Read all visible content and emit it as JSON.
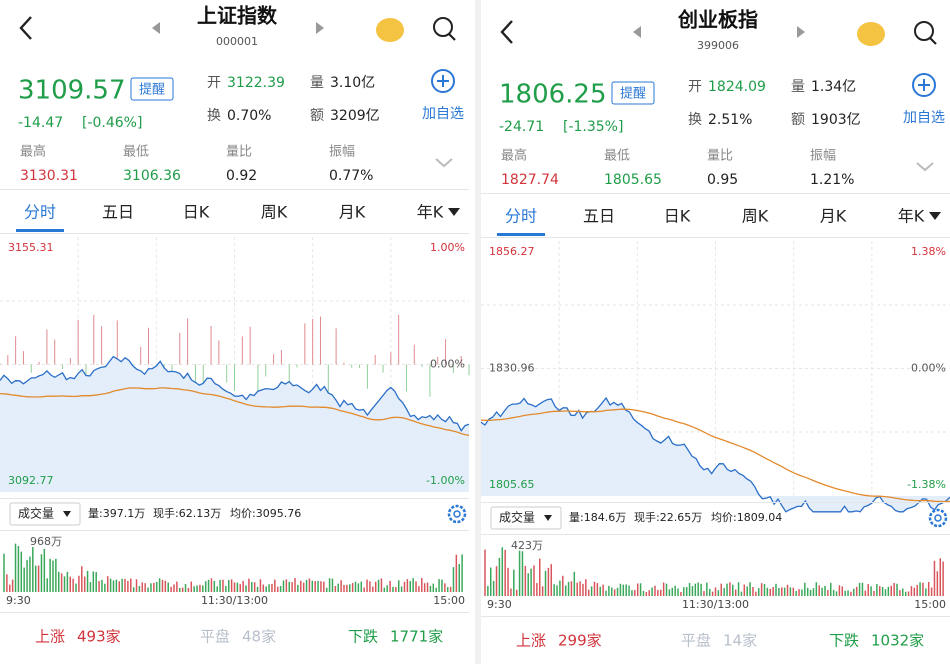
{
  "panels": [
    {
      "title": "上证指数",
      "code": "000001",
      "price": "3109.57",
      "remind": "提醒",
      "change": "-14.47",
      "change_pct": "[-0.46%]",
      "quote": [
        {
          "label": "开",
          "value": "3122.39"
        },
        {
          "label": "量",
          "value": "3.10亿"
        },
        {
          "label": "换",
          "value": "0.70%"
        },
        {
          "label": "额",
          "value": "3209亿"
        }
      ],
      "add": "加自选",
      "stats": [
        {
          "label": "最高",
          "value": "3130.31"
        },
        {
          "label": "最低",
          "value": "3106.36"
        },
        {
          "label": "量比",
          "value": "0.92"
        },
        {
          "label": "振幅",
          "value": "0.77%"
        }
      ],
      "tabs": [
        "分时",
        "五日",
        "日K",
        "周K",
        "月K",
        "年K"
      ],
      "chart": {
        "high": "3155.31",
        "high_pct": "1.00%",
        "mid_pct": "0.00%",
        "low": "3092.77",
        "low_pct": "-1.00%"
      },
      "volume": {
        "selector": "成交量",
        "vol": "量:397.1万",
        "hand": "现手:62.13万",
        "avg": "均价:3095.76",
        "max": "968万"
      },
      "times": [
        "9:30",
        "11:30/13:00",
        "15:00"
      ],
      "breadth": [
        {
          "label": "上涨",
          "value": "493家"
        },
        {
          "label": "平盘",
          "value": "48家"
        },
        {
          "label": "下跌",
          "value": "1771家"
        }
      ]
    },
    {
      "title": "创业板指",
      "code": "399006",
      "price": "1806.25",
      "remind": "提醒",
      "change": "-24.71",
      "change_pct": "[-1.35%]",
      "quote": [
        {
          "label": "开",
          "value": "1824.09"
        },
        {
          "label": "量",
          "value": "1.34亿"
        },
        {
          "label": "换",
          "value": "2.51%"
        },
        {
          "label": "额",
          "value": "1903亿"
        }
      ],
      "add": "加自选",
      "stats": [
        {
          "label": "最高",
          "value": "1827.74"
        },
        {
          "label": "最低",
          "value": "1805.65"
        },
        {
          "label": "量比",
          "value": "0.95"
        },
        {
          "label": "振幅",
          "value": "1.21%"
        }
      ],
      "tabs": [
        "分时",
        "五日",
        "日K",
        "周K",
        "月K",
        "年K"
      ],
      "chart": {
        "high": "1856.27",
        "high_pct": "1.38%",
        "mid": "1830.96",
        "mid_pct": "0.00%",
        "low": "1805.65",
        "low_pct": "-1.38%"
      },
      "volume": {
        "selector": "成交量",
        "vol": "量:184.6万",
        "hand": "现手:22.65万",
        "avg": "均价:1809.04",
        "max": "423万"
      },
      "times": [
        "9:30",
        "11:30/13:00",
        "15:00"
      ],
      "breadth": [
        {
          "label": "上涨",
          "value": "299家"
        },
        {
          "label": "平盘",
          "value": "14家"
        },
        {
          "label": "下跌",
          "value": "1032家"
        }
      ]
    }
  ]
}
